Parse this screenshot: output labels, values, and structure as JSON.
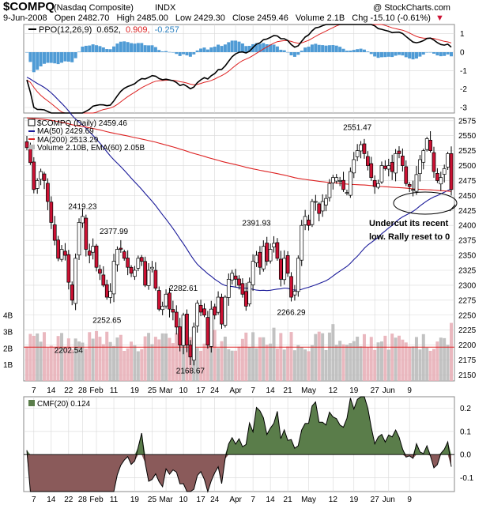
{
  "header": {
    "symbol": "$COMPQ",
    "name": "(Nasdaq Composite)",
    "exchange": "INDX",
    "watermark": "@ StockCharts.com",
    "date": "9-Jun-2008",
    "open_label": "Open",
    "open": "2482.70",
    "high_label": "High",
    "high": "2485.00",
    "low_label": "Low",
    "low": "2429.30",
    "close_label": "Close",
    "close": "2459.46",
    "volume_label": "Volume",
    "volume": "2.1B",
    "chg_label": "Chg",
    "chg": "-15.10 (-0.61%)",
    "chg_arrow": "▼"
  },
  "ppo_panel": {
    "label": "PPO(12,26,9)",
    "v1": "0.652,",
    "v2": "0.909,",
    "v3": "-0.257"
  },
  "price_panel": {
    "legend_main": "$COMPQ (Daily) 2459.46",
    "legend_ma50": "MA(50) 2429.69",
    "legend_ma200": "MA(200) 2513.29",
    "legend_vol": "Volume 2.10B, EMA(60) 2.05B",
    "annotation": [
      "Undercut its recent",
      "low. Rally reset to 0"
    ]
  },
  "cmf_panel": {
    "label": "CMF(20) 0.124"
  },
  "colors": {
    "up": "#ffffff",
    "down": "#cc1133",
    "ma50": "#1a1a99",
    "ma200": "#dd2222",
    "ppo_line": "#000000",
    "signal_line": "#dd2222",
    "hist": "#4f9bd5",
    "cmf_pos": "#5a7d4a",
    "cmf_neg": "#8a5a5a",
    "vol_down": "#e8b0b8",
    "vol_up": "#bbbbbb",
    "grid": "#d8d8d8"
  },
  "chart_data": [
    {
      "type": "candlestick",
      "title": "$COMPQ (Nasdaq Composite) INDX",
      "x_ticks": [
        "7",
        "14",
        "22",
        "28",
        "Feb",
        "11",
        "19",
        "25",
        "Mar",
        "10",
        "17",
        "24",
        "Apr",
        "7",
        "14",
        "21",
        "May",
        "12",
        "19",
        "27",
        "Jun",
        "9"
      ],
      "ylim": [
        2140,
        2580
      ],
      "y_ticks": [
        2150,
        2175,
        2200,
        2225,
        2250,
        2275,
        2300,
        2325,
        2350,
        2375,
        2400,
        2425,
        2450,
        2475,
        2500,
        2525,
        2550,
        2575
      ],
      "close": [
        2530,
        2505,
        2460,
        2475,
        2490,
        2475,
        2440,
        2405,
        2375,
        2345,
        2360,
        2350,
        2305,
        2275,
        2345,
        2405,
        2415,
        2360,
        2350,
        2365,
        2330,
        2320,
        2300,
        2280,
        2290,
        2340,
        2360,
        2360,
        2345,
        2330,
        2320,
        2325,
        2345,
        2340,
        2300,
        2325,
        2330,
        2295,
        2260,
        2265,
        2285,
        2260,
        2255,
        2230,
        2200,
        2250,
        2200,
        2180,
        2230,
        2270,
        2255,
        2250,
        2200,
        2260,
        2250,
        2280,
        2235,
        2280,
        2310,
        2320,
        2310,
        2300,
        2285,
        2265,
        2305,
        2340,
        2350,
        2330,
        2365,
        2340,
        2360,
        2370,
        2345,
        2310,
        2345,
        2320,
        2280,
        2290,
        2345,
        2400,
        2415,
        2400,
        2440,
        2440,
        2420,
        2440,
        2445,
        2470,
        2480,
        2480,
        2475,
        2460,
        2455,
        2490,
        2510,
        2525,
        2535,
        2520,
        2500,
        2480,
        2465,
        2470,
        2500,
        2495,
        2500,
        2490,
        2520,
        2520,
        2500,
        2470,
        2465,
        2460,
        2485,
        2510,
        2525,
        2545,
        2525,
        2490,
        2475,
        2480,
        2495,
        2520,
        2460
      ],
      "series_annotations": [
        {
          "label": "2419.23"
        },
        {
          "label": "2377.99"
        },
        {
          "label": "2252.65"
        },
        {
          "label": "2202.54"
        },
        {
          "label": "2282.61"
        },
        {
          "label": "2168.67"
        },
        {
          "label": "2391.93"
        },
        {
          "label": "2266.29"
        },
        {
          "label": "2551.47"
        }
      ],
      "ma50_label": "MA(50)",
      "ma200_label": "MA(200)",
      "volume_ticks": [
        "1B",
        "2B",
        "3B",
        "4B"
      ]
    },
    {
      "type": "line",
      "name": "PPO(12,26,9)",
      "y_ticks": [
        -3,
        -2,
        -1,
        0,
        1
      ],
      "ylim": [
        -3.3,
        1.5
      ]
    },
    {
      "type": "area",
      "name": "CMF(20)",
      "y_ticks": [
        -0.1,
        0.0,
        0.1,
        0.2
      ],
      "ylim": [
        -0.16,
        0.25
      ]
    }
  ]
}
